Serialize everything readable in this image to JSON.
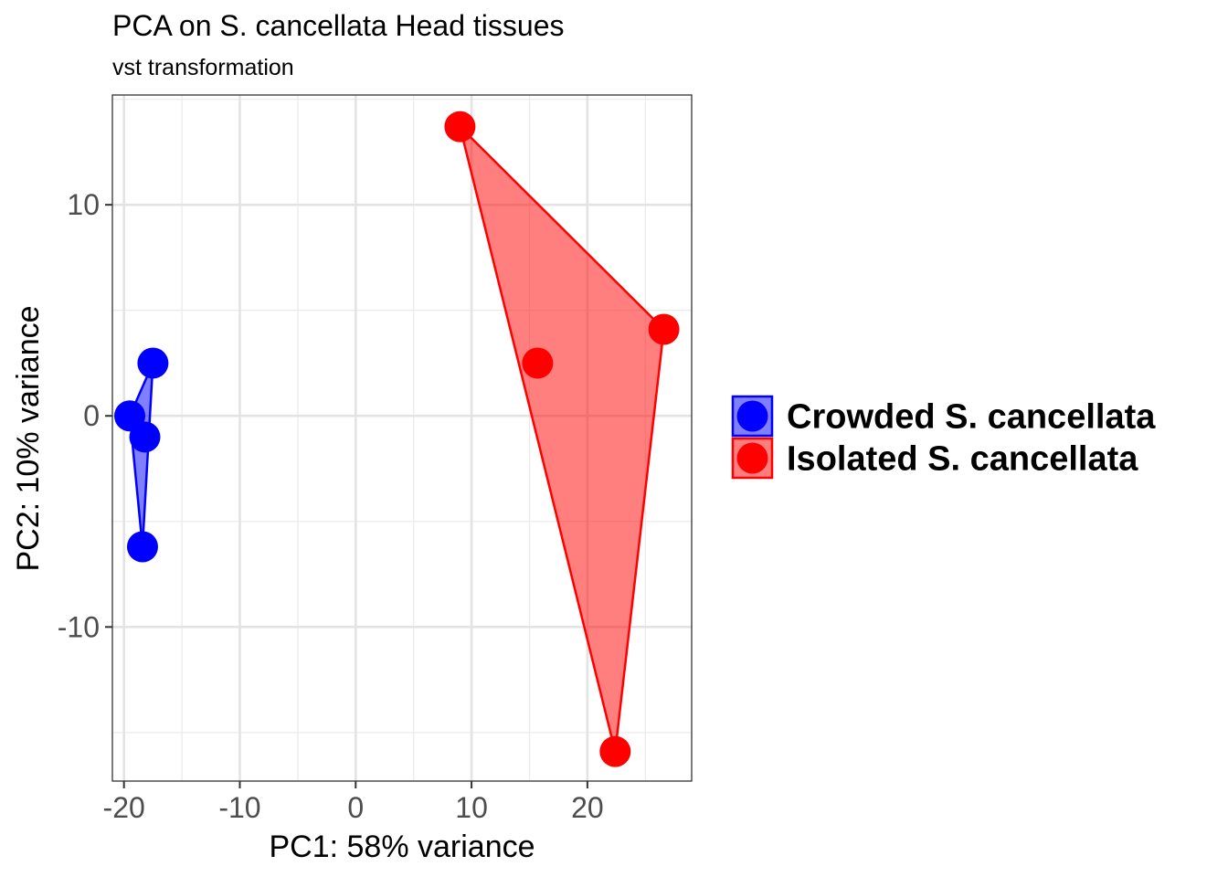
{
  "chart_data": {
    "type": "scatter",
    "title": "PCA on S. cancellata Head tissues",
    "subtitle": "vst transformation",
    "xlabel": "PC1: 58% variance",
    "ylabel": "PC2: 10% variance",
    "xlim": [
      -21,
      29
    ],
    "ylim": [
      -17.3,
      15.2
    ],
    "x_ticks": [
      -20,
      -10,
      0,
      10,
      20
    ],
    "x_tick_labels": [
      "-20",
      "-10",
      "0",
      "10",
      "20"
    ],
    "y_ticks": [
      -10,
      0,
      10
    ],
    "y_tick_labels": [
      "-10",
      "0",
      "10"
    ],
    "grid": true,
    "legend_position": "right",
    "series": [
      {
        "name": "Crowded S. cancellata",
        "color": "#0000ff",
        "hull": true,
        "points": [
          {
            "x": -19.5,
            "y": 0.0
          },
          {
            "x": -17.5,
            "y": 2.5
          },
          {
            "x": -18.2,
            "y": -1.0
          },
          {
            "x": -18.4,
            "y": -6.2
          }
        ]
      },
      {
        "name": "Isolated S. cancellata",
        "color": "#ff0000",
        "hull": true,
        "points": [
          {
            "x": 9.0,
            "y": 13.7
          },
          {
            "x": 26.6,
            "y": 4.1
          },
          {
            "x": 15.7,
            "y": 2.5
          },
          {
            "x": 22.4,
            "y": -15.9
          }
        ]
      }
    ]
  }
}
